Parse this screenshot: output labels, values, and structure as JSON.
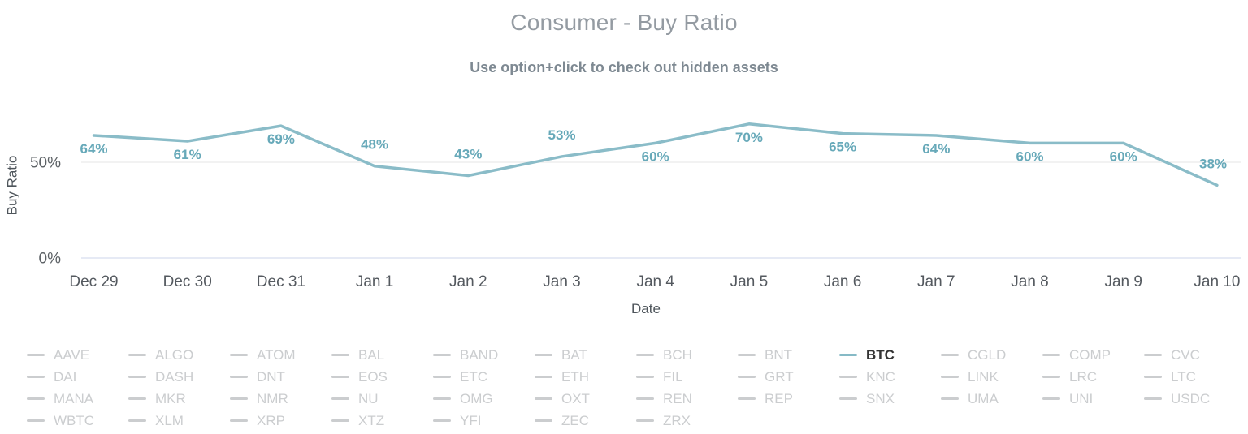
{
  "chart_data": {
    "type": "line",
    "title": "Consumer - Buy Ratio",
    "subtitle": "Use option+click to check out hidden assets",
    "xlabel": "Date",
    "ylabel": "Buy Ratio",
    "categories": [
      "Dec 29",
      "Dec 30",
      "Dec 31",
      "Jan 1",
      "Jan 2",
      "Jan 3",
      "Jan 4",
      "Jan 5",
      "Jan 6",
      "Jan 7",
      "Jan 8",
      "Jan 9",
      "Jan 10"
    ],
    "series": [
      {
        "name": "BTC",
        "values": [
          64,
          61,
          69,
          48,
          43,
          53,
          60,
          70,
          65,
          64,
          60,
          60,
          38
        ],
        "color": "#8abcc8"
      }
    ],
    "unit": "%",
    "ylim": [
      0,
      80
    ],
    "yticks": [
      {
        "value": 50,
        "label": "50%"
      },
      {
        "value": 0,
        "label": "0%"
      }
    ],
    "grid": "single-horizontal-gridline-at-50%",
    "legend_position": "bottom",
    "data_label_color": "#67a9b9",
    "gridline_color": "#e6e6e6",
    "axisline_color": "#ccd6eb"
  },
  "legend": {
    "active_asset": "BTC",
    "assets": [
      "AAVE",
      "ALGO",
      "ATOM",
      "BAL",
      "BAND",
      "BAT",
      "BCH",
      "BNT",
      "BTC",
      "CGLD",
      "COMP",
      "CVC",
      "DAI",
      "DASH",
      "DNT",
      "EOS",
      "ETC",
      "ETH",
      "FIL",
      "GRT",
      "KNC",
      "LINK",
      "LRC",
      "LTC",
      "MANA",
      "MKR",
      "NMR",
      "NU",
      "OMG",
      "OXT",
      "REN",
      "REP",
      "SNX",
      "UMA",
      "UNI",
      "USDC",
      "WBTC",
      "XLM",
      "XRP",
      "XTZ",
      "YFI",
      "ZEC",
      "ZRX"
    ],
    "inactive_color": "#cbcdcf",
    "active_text_color": "#333333",
    "active_marker_color": "#86bac6"
  }
}
